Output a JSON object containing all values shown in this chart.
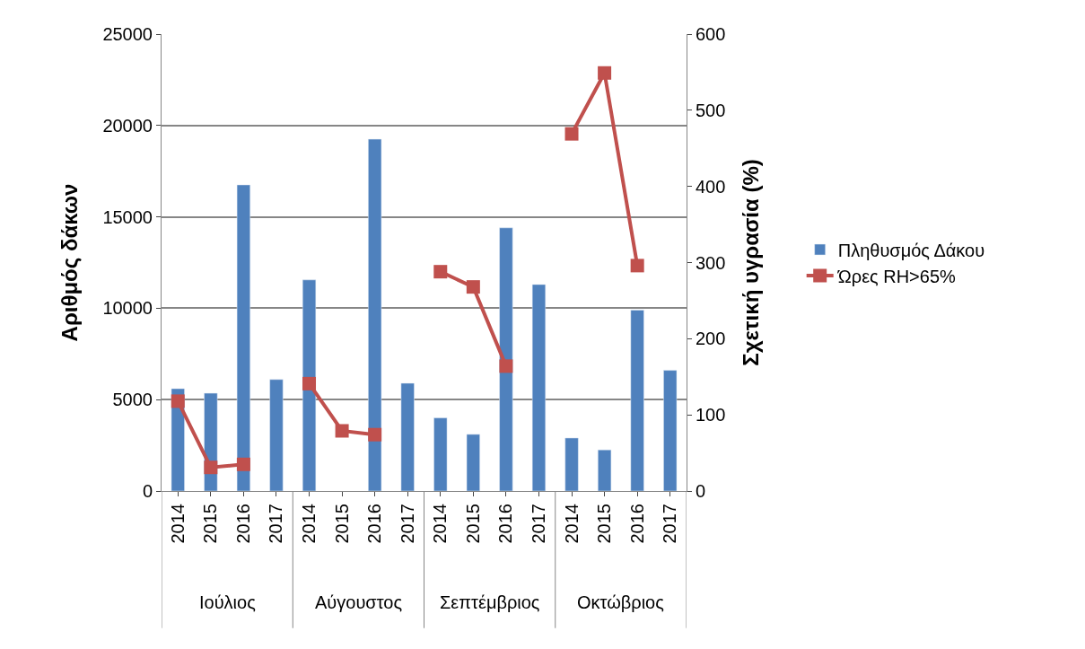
{
  "chart_data": {
    "type": "bar",
    "ylabel": "Αριθμός δάκων",
    "y2label": "Σχετική υγρασία (%)",
    "categories": [
      "2014",
      "2015",
      "2016",
      "2017",
      "2014",
      "2015",
      "2016",
      "2017",
      "2014",
      "2015",
      "2016",
      "2017",
      "2014",
      "2015",
      "2016",
      "2017"
    ],
    "annotations": [
      "Ιούλιος",
      "Αύγουστος",
      "Σεπτέμβριος",
      "Οκτώβριος"
    ],
    "series": [
      {
        "name": "Πληθυσμός Δάκου",
        "color": "#4f81bd",
        "values": [
          5600,
          5350,
          16750,
          6100,
          11550,
          null,
          19250,
          5900,
          4000,
          3100,
          14400,
          11300,
          2900,
          2250,
          9900,
          6600
        ]
      },
      {
        "name": "Ώρες RH>65%",
        "type": "line",
        "axis": "y2",
        "color": "#c0504d",
        "marker": "square",
        "values": [
          118,
          31,
          35,
          null,
          141,
          79,
          74,
          null,
          288,
          268,
          164,
          null,
          469,
          549,
          296,
          null
        ]
      }
    ],
    "ylim": [
      0,
      25000
    ],
    "yticks": [
      0,
      5000,
      10000,
      15000,
      20000,
      25000
    ],
    "y2lim": [
      0,
      600
    ],
    "y2ticks": [
      0,
      100,
      200,
      300,
      400,
      500,
      600
    ],
    "grid": "y",
    "legend": "right"
  }
}
